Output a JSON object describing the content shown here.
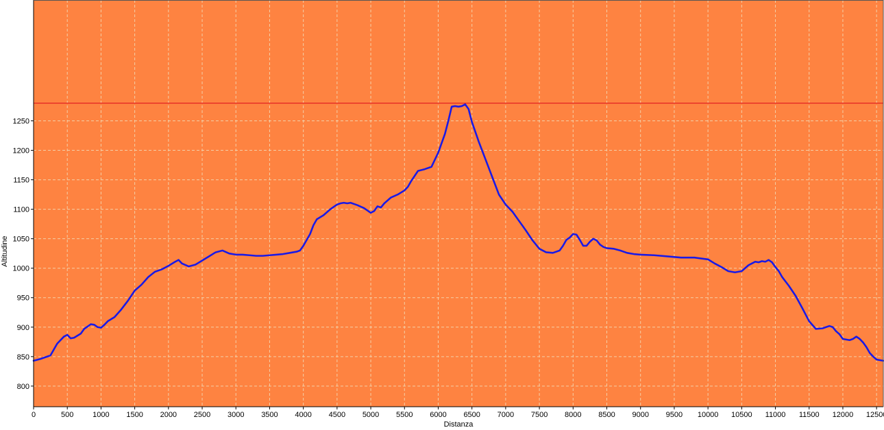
{
  "chart_data": {
    "type": "line",
    "xlabel": "Distanza",
    "ylabel": "Altitudine",
    "xlim": [
      0,
      12600
    ],
    "ylim": [
      765,
      1455
    ],
    "xticks": [
      0,
      500,
      1000,
      1500,
      2000,
      2500,
      3000,
      3500,
      4000,
      4500,
      5000,
      5500,
      6000,
      6500,
      7000,
      7500,
      8000,
      8500,
      9000,
      9500,
      10000,
      10500,
      11000,
      11500,
      12000,
      12500
    ],
    "xtick_labels": [
      "0",
      "500",
      "1000",
      "1500",
      "2000",
      "2500",
      "3000",
      "3500",
      "4000",
      "4500",
      "5000",
      "5500",
      "6000",
      "6500",
      "7000",
      "7500",
      "8000",
      "8500",
      "9000",
      "9500",
      "10000",
      "10500",
      "11000",
      "11500",
      "12000",
      "12500"
    ],
    "yticks": [
      800,
      850,
      900,
      950,
      1000,
      1050,
      1100,
      1150,
      1200,
      1250
    ],
    "ytick_labels": [
      "800",
      "850",
      "900",
      "950",
      "1000",
      "1050",
      "1100",
      "1150",
      "1200",
      "1250"
    ],
    "grid": true,
    "reference_line": 1280,
    "colors": {
      "background": "#fe8341",
      "line": "#1a1ae6",
      "reference_line": "#e22222",
      "grid": "#f3cfa7"
    },
    "series": [
      {
        "x": [
          0,
          100,
          250,
          350,
          450,
          500,
          550,
          600,
          700,
          750,
          850,
          900,
          950,
          1000,
          1050,
          1100,
          1200,
          1300,
          1400,
          1500,
          1600,
          1700,
          1800,
          1900,
          2000,
          2100,
          2150,
          2200,
          2300,
          2400,
          2500,
          2600,
          2700,
          2800,
          2900,
          3000,
          3100,
          3200,
          3300,
          3400,
          3500,
          3600,
          3700,
          3800,
          3900,
          3950,
          4000,
          4100,
          4150,
          4200,
          4300,
          4400,
          4500,
          4550,
          4600,
          4650,
          4700,
          4800,
          4900,
          5000,
          5050,
          5100,
          5150,
          5200,
          5300,
          5400,
          5500,
          5550,
          5600,
          5700,
          5800,
          5900,
          6000,
          6100,
          6150,
          6200,
          6250,
          6300,
          6350,
          6400,
          6450,
          6500,
          6600,
          6700,
          6800,
          6900,
          7000,
          7100,
          7200,
          7300,
          7400,
          7500,
          7600,
          7700,
          7800,
          7850,
          7900,
          7950,
          8000,
          8050,
          8100,
          8150,
          8200,
          8250,
          8300,
          8350,
          8400,
          8450,
          8500,
          8600,
          8700,
          8800,
          8900,
          9000,
          9200,
          9400,
          9600,
          9800,
          10000,
          10100,
          10200,
          10300,
          10400,
          10500,
          10600,
          10650,
          10700,
          10750,
          10800,
          10850,
          10900,
          10950,
          11000,
          11050,
          11100,
          11200,
          11300,
          11400,
          11500,
          11600,
          11700,
          11800,
          11850,
          11900,
          11950,
          12000,
          12100,
          12150,
          12200,
          12250,
          12300,
          12350,
          12400,
          12450,
          12500,
          12600
        ],
        "y": [
          843,
          846,
          852,
          872,
          884,
          887,
          881,
          882,
          889,
          897,
          905,
          904,
          900,
          899,
          904,
          910,
          917,
          930,
          945,
          962,
          972,
          985,
          994,
          998,
          1004,
          1011,
          1014,
          1008,
          1003,
          1006,
          1013,
          1020,
          1027,
          1030,
          1025,
          1023,
          1023,
          1022,
          1021,
          1021,
          1022,
          1023,
          1024,
          1026,
          1028,
          1030,
          1038,
          1058,
          1073,
          1083,
          1090,
          1100,
          1108,
          1110,
          1111,
          1110,
          1111,
          1107,
          1102,
          1094,
          1097,
          1105,
          1103,
          1110,
          1120,
          1125,
          1132,
          1138,
          1148,
          1165,
          1168,
          1172,
          1196,
          1228,
          1250,
          1274,
          1275,
          1274,
          1275,
          1278,
          1270,
          1248,
          1215,
          1185,
          1155,
          1125,
          1108,
          1096,
          1080,
          1064,
          1047,
          1033,
          1027,
          1026,
          1030,
          1038,
          1048,
          1052,
          1058,
          1057,
          1048,
          1038,
          1038,
          1045,
          1050,
          1047,
          1040,
          1036,
          1034,
          1033,
          1030,
          1026,
          1024,
          1023,
          1022,
          1020,
          1018,
          1018,
          1015,
          1008,
          1002,
          995,
          993,
          995,
          1005,
          1008,
          1011,
          1010,
          1012,
          1011,
          1014,
          1010,
          1002,
          995,
          985,
          970,
          953,
          932,
          910,
          897,
          898,
          902,
          900,
          893,
          888,
          880,
          878,
          880,
          884,
          880,
          874,
          866,
          856,
          850,
          845,
          843
        ]
      }
    ]
  }
}
